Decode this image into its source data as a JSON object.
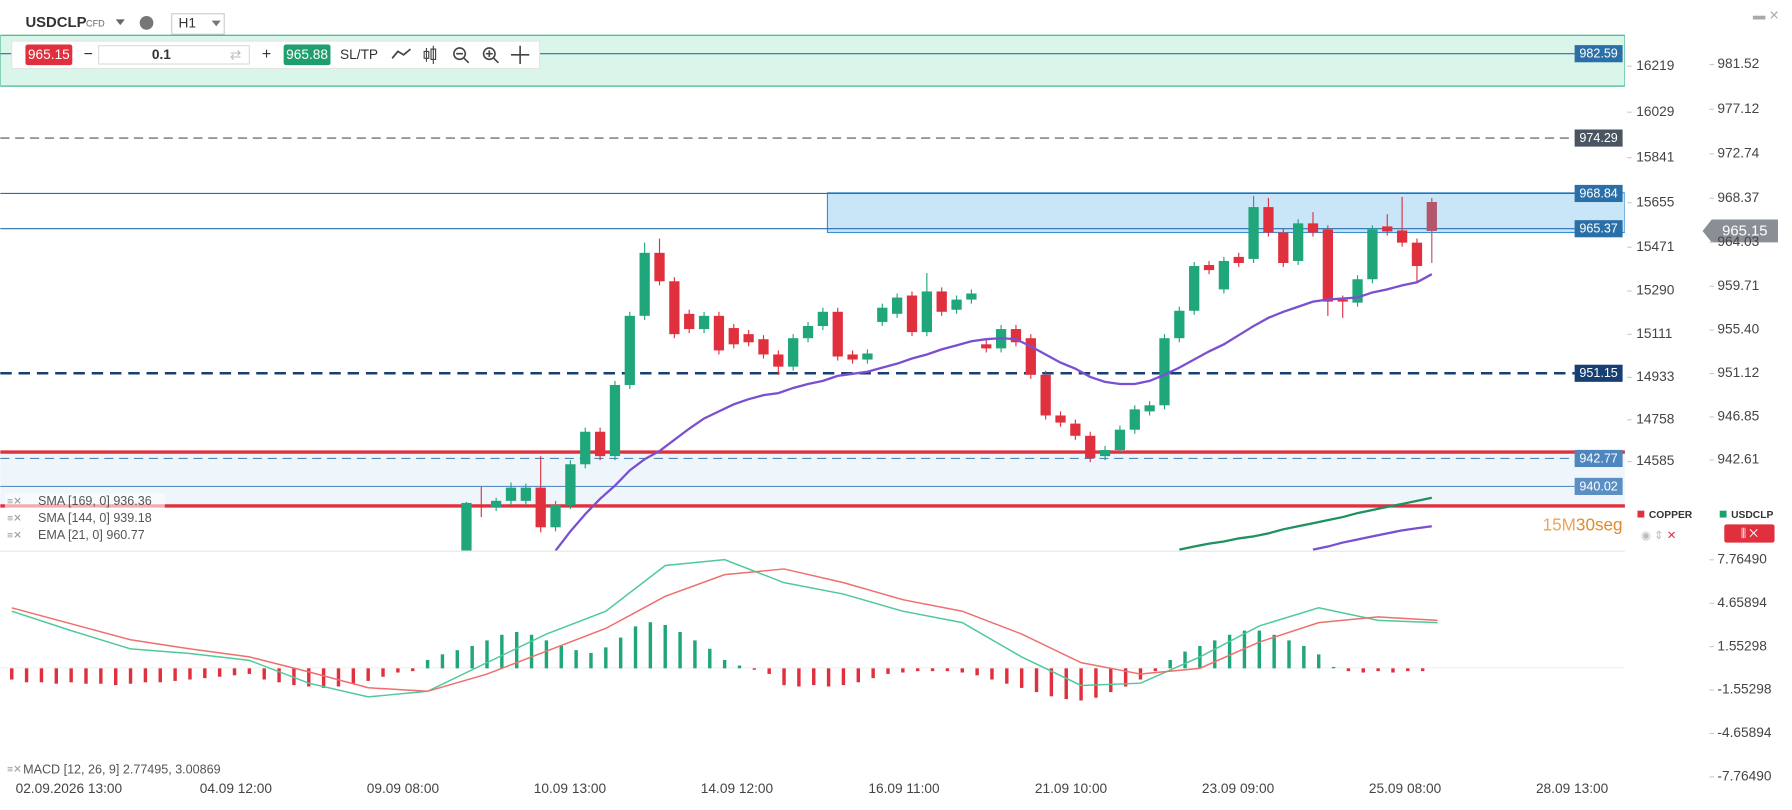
{
  "header": {
    "symbol": "USDCLP",
    "tag": "CFD",
    "timeframe": "H1"
  },
  "trade_bar": {
    "sell_price": "965.15",
    "volume": "0.1",
    "buy_price": "965.88",
    "sltp": "SL/TP"
  },
  "chart": {
    "type": "candlestick",
    "ylim": [
      933.7,
      984.5
    ],
    "yticks": [
      981.52,
      977.12,
      972.74,
      968.37,
      964.03,
      959.71,
      {
        "value": 955.4,
        "label": "955.40"
      },
      951.12,
      946.85,
      942.61
    ],
    "y2lim": [
      14217,
      16351
    ],
    "y2ticks": [
      16219,
      16029,
      15841,
      15655,
      15471,
      15290,
      15111,
      14933,
      14758,
      14585
    ],
    "x_labels": [
      "02.09.2026 13:00",
      "04.09 12:00",
      "09.09 08:00",
      "10.09 13:00",
      "14.09 12:00",
      "16.09 11:00",
      "21.09 10:00",
      "23.09 09:00",
      "25.09 08:00",
      "28.09 13:00"
    ],
    "candles": [
      [
        933.7,
        938.5,
        933.0,
        938.4
      ],
      [
        938.2,
        940.0,
        937.0,
        938.0
      ],
      [
        938.0,
        938.9,
        937.6,
        938.6
      ],
      [
        938.6,
        940.4,
        938.2,
        939.9
      ],
      [
        938.6,
        940.3,
        938.2,
        939.9
      ],
      [
        939.9,
        943.0,
        935.5,
        936.0
      ],
      [
        936.0,
        938.6,
        935.6,
        938.2
      ],
      [
        938.2,
        942.6,
        937.8,
        942.2
      ],
      [
        942.2,
        945.8,
        941.8,
        945.4
      ],
      [
        945.4,
        945.8,
        942.6,
        943.0
      ],
      [
        943.0,
        950.4,
        942.6,
        950.0
      ],
      [
        950.0,
        957.2,
        949.6,
        956.8
      ],
      [
        956.8,
        964.0,
        956.4,
        963.0
      ],
      [
        963.0,
        964.4,
        959.8,
        960.2
      ],
      [
        960.2,
        960.6,
        954.6,
        955.0
      ],
      [
        957.0,
        957.4,
        955.1,
        955.5
      ],
      [
        955.5,
        957.2,
        955.1,
        956.8
      ],
      [
        956.8,
        957.2,
        953.0,
        953.4
      ],
      [
        955.6,
        956.0,
        953.6,
        954.0
      ],
      [
        955.0,
        955.4,
        953.8,
        954.2
      ],
      [
        954.5,
        954.9,
        952.6,
        953.0
      ],
      [
        953.0,
        953.4,
        951.0,
        951.8
      ],
      [
        951.8,
        955.0,
        951.4,
        954.6
      ],
      [
        954.6,
        956.2,
        954.2,
        955.8
      ],
      [
        955.8,
        957.6,
        955.4,
        957.2
      ],
      [
        957.2,
        957.6,
        952.4,
        952.8
      ],
      [
        953.0,
        953.4,
        952.1,
        952.5
      ],
      [
        952.5,
        953.5,
        952.1,
        953.1
      ],
      [
        956.2,
        958.0,
        955.8,
        957.6
      ],
      [
        957.0,
        959.0,
        956.6,
        958.6
      ],
      [
        958.8,
        959.2,
        954.8,
        955.2
      ],
      [
        955.2,
        961.0,
        954.8,
        959.2
      ],
      [
        959.2,
        959.6,
        956.8,
        957.2
      ],
      [
        957.4,
        958.8,
        957.0,
        958.4
      ],
      [
        958.4,
        959.4,
        958.0,
        959.0
      ],
      [
        954.0,
        954.4,
        953.2,
        953.6
      ],
      [
        953.6,
        955.9,
        953.2,
        955.5
      ],
      [
        955.5,
        955.9,
        953.8,
        954.2
      ],
      [
        954.6,
        955.0,
        950.6,
        951.0
      ],
      [
        951.0,
        951.4,
        946.6,
        947.0
      ],
      [
        947.0,
        947.4,
        945.9,
        946.3
      ],
      [
        946.2,
        946.6,
        944.6,
        945.0
      ],
      [
        945.0,
        945.4,
        942.4,
        942.8
      ],
      [
        943.0,
        944.0,
        942.6,
        943.6
      ],
      [
        943.6,
        946.0,
        943.2,
        945.6
      ],
      [
        945.6,
        948.0,
        945.2,
        947.6
      ],
      [
        947.4,
        948.4,
        947.0,
        948.0
      ],
      [
        948.0,
        955.0,
        947.6,
        954.6
      ],
      [
        954.6,
        957.7,
        954.2,
        957.3
      ],
      [
        957.3,
        962.1,
        956.9,
        961.7
      ],
      [
        961.8,
        962.2,
        960.9,
        961.3
      ],
      [
        959.4,
        962.6,
        959.0,
        962.2
      ],
      [
        962.6,
        963.0,
        961.6,
        962.0
      ],
      [
        962.4,
        968.6,
        962.0,
        967.5
      ],
      [
        967.5,
        968.4,
        964.6,
        965.0
      ],
      [
        965.0,
        965.4,
        961.6,
        962.0
      ],
      [
        962.2,
        966.3,
        961.8,
        965.9
      ],
      [
        965.9,
        967.0,
        964.6,
        965.0
      ],
      [
        965.3,
        965.7,
        956.8,
        958.2
      ],
      [
        958.4,
        958.8,
        956.6,
        958.2
      ],
      [
        958.1,
        960.8,
        957.7,
        960.4
      ],
      [
        960.4,
        965.7,
        960.0,
        965.3
      ],
      [
        965.6,
        966.8,
        964.7,
        965.1
      ],
      [
        965.2,
        968.5,
        963.6,
        964.0
      ],
      [
        964.0,
        964.4,
        960.0,
        961.7
      ],
      [
        968.0,
        968.4,
        962.0,
        965.15
      ]
    ],
    "ema": [
      null,
      null,
      null,
      null,
      null,
      null,
      933.7,
      935.6,
      937.3,
      938.8,
      940.1,
      941.6,
      942.7,
      943.5,
      944.6,
      945.7,
      946.7,
      947.4,
      948.1,
      948.6,
      949.0,
      949.2,
      949.7,
      950.1,
      950.4,
      950.9,
      951.1,
      951.3,
      951.7,
      952.1,
      952.6,
      953.0,
      953.5,
      953.9,
      954.3,
      954.5,
      954.6,
      954.5,
      953.8,
      953.0,
      952.2,
      951.6,
      950.8,
      950.3,
      950.1,
      950.1,
      950.4,
      951.0,
      951.7,
      952.5,
      953.3,
      954.0,
      954.9,
      955.8,
      956.6,
      957.2,
      957.7,
      958.2,
      958.4,
      958.5,
      958.6,
      959.1,
      959.4,
      959.8,
      960.1,
      960.9
    ],
    "sma_green": [
      null,
      null,
      null,
      null,
      null,
      null,
      null,
      null,
      null,
      null,
      null,
      null,
      null,
      null,
      null,
      null,
      null,
      null,
      null,
      null,
      null,
      null,
      null,
      null,
      null,
      null,
      null,
      null,
      null,
      null,
      null,
      null,
      null,
      null,
      null,
      null,
      null,
      null,
      null,
      null,
      null,
      null,
      null,
      null,
      null,
      null,
      null,
      null,
      933.8,
      934.1,
      934.4,
      934.6,
      934.9,
      935.1,
      935.4,
      935.8,
      936.1,
      936.4,
      936.7,
      937.0,
      937.4,
      937.7,
      938.0,
      938.3,
      938.6,
      938.9
    ],
    "sma_purple": [
      null,
      null,
      null,
      null,
      null,
      null,
      null,
      null,
      null,
      null,
      null,
      null,
      null,
      null,
      null,
      null,
      null,
      null,
      null,
      null,
      null,
      null,
      null,
      null,
      null,
      null,
      null,
      null,
      null,
      null,
      null,
      null,
      null,
      null,
      null,
      null,
      null,
      null,
      null,
      null,
      null,
      null,
      null,
      null,
      null,
      null,
      null,
      null,
      null,
      null,
      null,
      null,
      null,
      null,
      null,
      null,
      null,
      933.8,
      934.1,
      934.5,
      934.8,
      935.1,
      935.4,
      935.7,
      935.9,
      936.1
    ],
    "levels": [
      {
        "value": 982.59,
        "style": "solid",
        "color": "#2a6fa8"
      },
      {
        "value": 974.29,
        "style": "dashed",
        "color": "#4a5561"
      },
      {
        "value": 968.84,
        "style": "solid",
        "color": "#2a6fa8"
      },
      {
        "value": 965.37,
        "style": "solid",
        "color": "#2a6fa8"
      },
      {
        "value": 951.15,
        "style": "dashed-bold",
        "color": "#173f73"
      },
      {
        "value": 942.77,
        "style": "dashed",
        "color": "#4f86bd"
      },
      {
        "value": 940.02,
        "style": "solid",
        "color": "#5b8fc4"
      }
    ],
    "red_levels": [
      943.4,
      938.1
    ],
    "zones": [
      {
        "from": 979.4,
        "to": 984.4,
        "color": "#daf5ea",
        "border": "#35b585"
      },
      {
        "from": 965.0,
        "to": 968.9,
        "color": "#c9e6f8",
        "border": "#3b8fd0"
      },
      {
        "from": 938.1,
        "to": 943.4,
        "color": "#eef6fc",
        "border": "#eef6fc"
      }
    ],
    "current_price": 965.15,
    "legend": [
      "SMA [169, 0] 936.36",
      "SMA [144, 0] 939.18",
      "EMA [21, 0] 960.77"
    ],
    "countdown": {
      "minutes": "15M",
      "seconds": "30seg"
    },
    "symbols": [
      "COPPER",
      "USDCLP"
    ]
  },
  "macd": {
    "label": "MACD [12, 26, 9] 2.77495, 3.00869",
    "ylim": [
      -7.7649,
      7.7649
    ],
    "yticks": [
      {
        "value": 7.7649,
        "label": "7.76490"
      },
      4.65894,
      1.55298,
      -1.55298,
      -4.65894,
      {
        "value": -7.7649,
        "label": "-7.76490"
      }
    ],
    "histogram": [
      -0.8,
      -1.0,
      -1.0,
      -1.1,
      -1.0,
      -1.1,
      -1.1,
      -1.2,
      -1.1,
      -1.0,
      -1.0,
      -0.9,
      -0.8,
      -0.7,
      -0.6,
      -0.5,
      -0.4,
      -0.8,
      -1.0,
      -1.2,
      -1.3,
      -1.4,
      -1.3,
      -1.1,
      -0.9,
      -0.6,
      -0.3,
      -0.2,
      0.6,
      1.0,
      1.3,
      1.6,
      2.0,
      2.4,
      2.6,
      2.4,
      2.0,
      1.6,
      1.3,
      1.1,
      1.5,
      2.2,
      3.0,
      3.3,
      3.1,
      2.6,
      2.0,
      1.4,
      0.6,
      0.2,
      -0.1,
      -0.4,
      -1.2,
      -1.3,
      -1.2,
      -1.3,
      -1.2,
      -1.0,
      -0.7,
      -0.4,
      -0.3,
      -0.2,
      -0.2,
      -0.2,
      -0.3,
      -0.5,
      -0.8,
      -1.1,
      -1.4,
      -1.7,
      -2.0,
      -2.2,
      -2.3,
      -2.1,
      -1.7,
      -1.3,
      -0.8,
      -0.2,
      0.6,
      1.2,
      1.6,
      2.0,
      2.4,
      2.7,
      2.7,
      2.4,
      2.0,
      1.6,
      1.0,
      0.1,
      -0.2,
      -0.3,
      -0.2,
      -0.3,
      -0.2,
      -0.2
    ],
    "macd": [
      4.09,
      2.7,
      1.39,
      1.06,
      0.57,
      -1.06,
      -2.04,
      -1.64,
      0.41,
      2.45,
      4.09,
      7.36,
      7.77,
      6.13,
      5.31,
      4.09,
      3.27,
      0.82,
      -1.23,
      -1.06,
      0.82,
      3.03,
      4.33,
      3.43,
      3.27
    ],
    "signal": [
      4.33,
      3.19,
      2.04,
      1.39,
      0.82,
      -0.25,
      -1.39,
      -1.64,
      -0.41,
      1.23,
      2.86,
      5.15,
      6.7,
      7.11,
      6.13,
      4.91,
      4.09,
      2.45,
      0.41,
      -0.41,
      0,
      1.88,
      3.27,
      3.68,
      3.43
    ]
  }
}
